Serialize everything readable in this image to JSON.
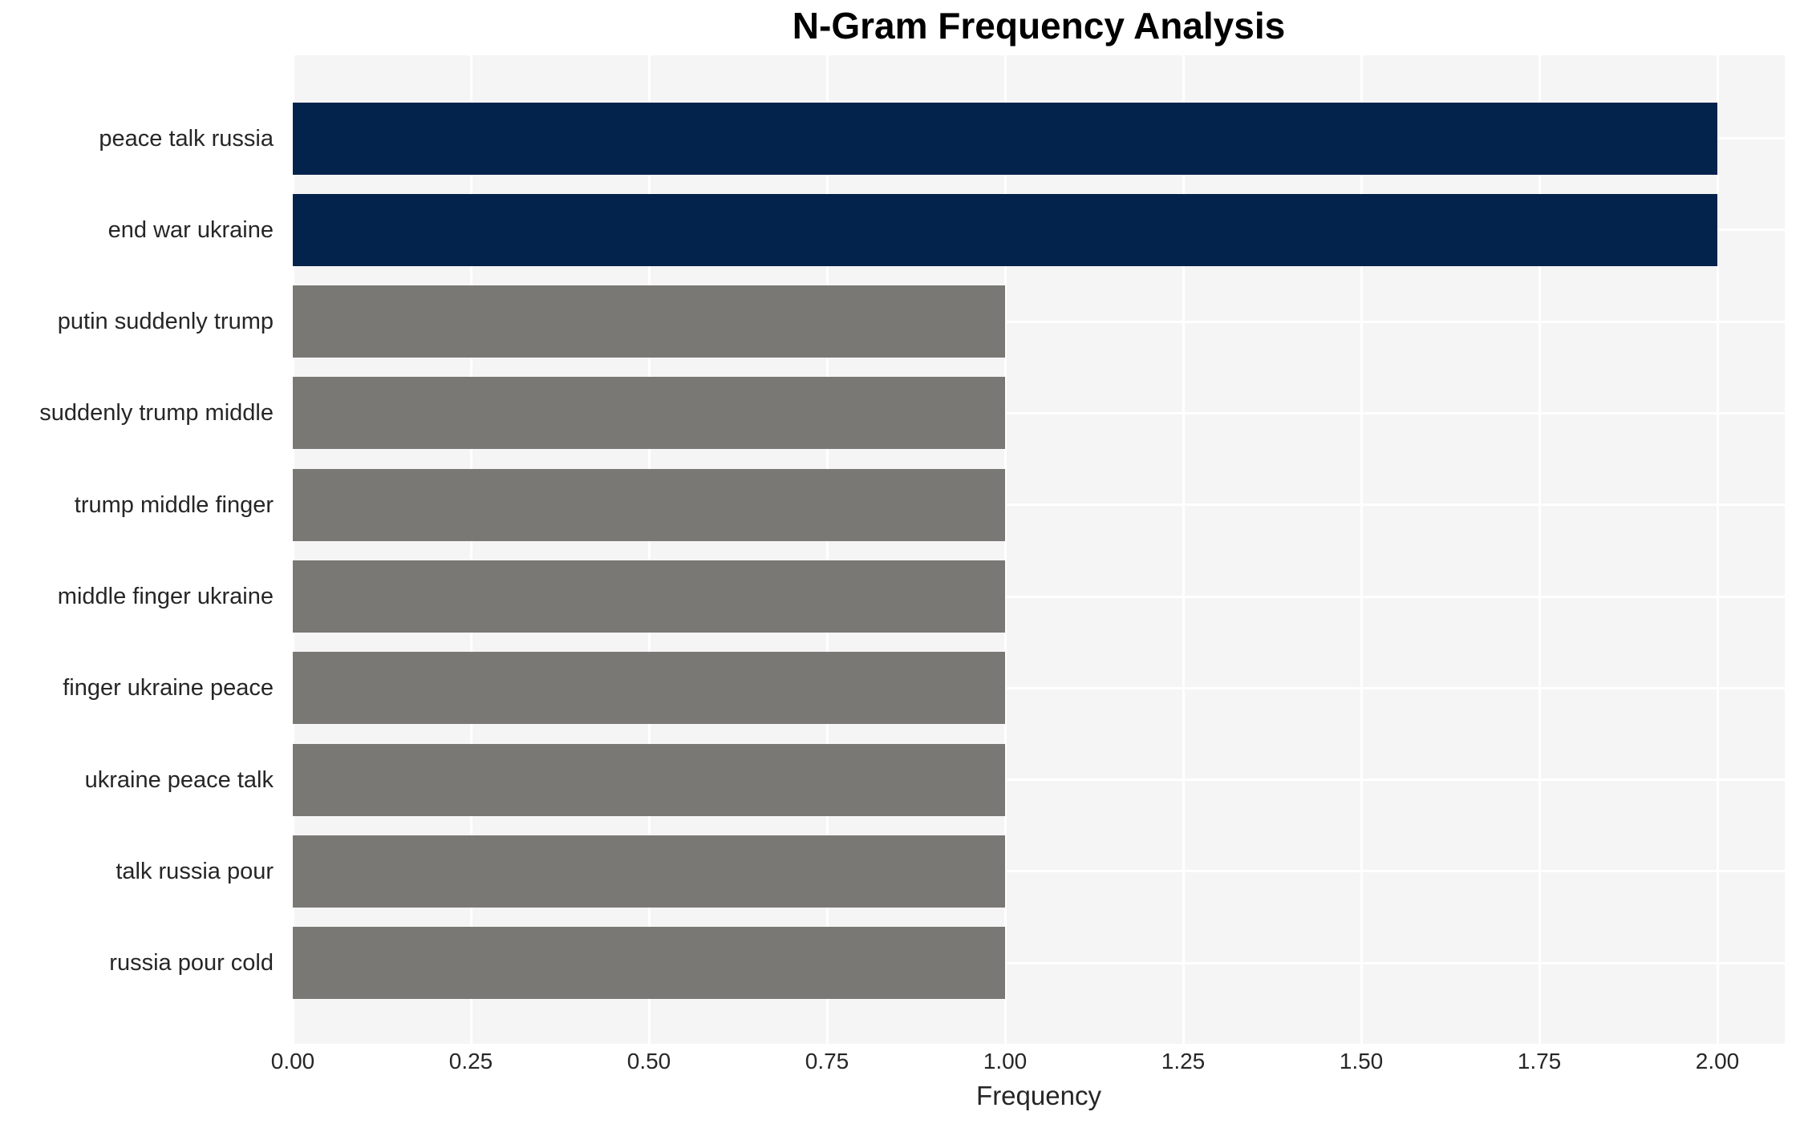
{
  "chart_data": {
    "type": "bar",
    "orientation": "horizontal",
    "title": "N-Gram Frequency Analysis",
    "xlabel": "Frequency",
    "ylabel": "",
    "categories": [
      "peace talk russia",
      "end war ukraine",
      "putin suddenly trump",
      "suddenly trump middle",
      "trump middle finger",
      "middle finger ukraine",
      "finger ukraine peace",
      "ukraine peace talk",
      "talk russia pour",
      "russia pour cold"
    ],
    "values": [
      2,
      2,
      1,
      1,
      1,
      1,
      1,
      1,
      1,
      1
    ],
    "bar_colors": [
      "#03234d",
      "#03234d",
      "#7a7874",
      "#7a7874",
      "#7a7874",
      "#7a7874",
      "#7a7874",
      "#7a7874",
      "#7a7874",
      "#7a7874"
    ],
    "xticks": [
      "0.00",
      "0.25",
      "0.50",
      "0.75",
      "1.00",
      "1.25",
      "1.50",
      "1.75",
      "2.00"
    ],
    "tick_step": 0.25,
    "xlim": [
      0,
      2.0946
    ],
    "grid": true,
    "legend": "none",
    "colors": {
      "highlight_bar": "#03234d",
      "default_bar": "#7a7874",
      "plot_background": "#f5f5f5",
      "grid_line": "#ffffff",
      "axis_text": "#262626",
      "title_text": "#000000",
      "figure_background": "#ffffff"
    }
  }
}
